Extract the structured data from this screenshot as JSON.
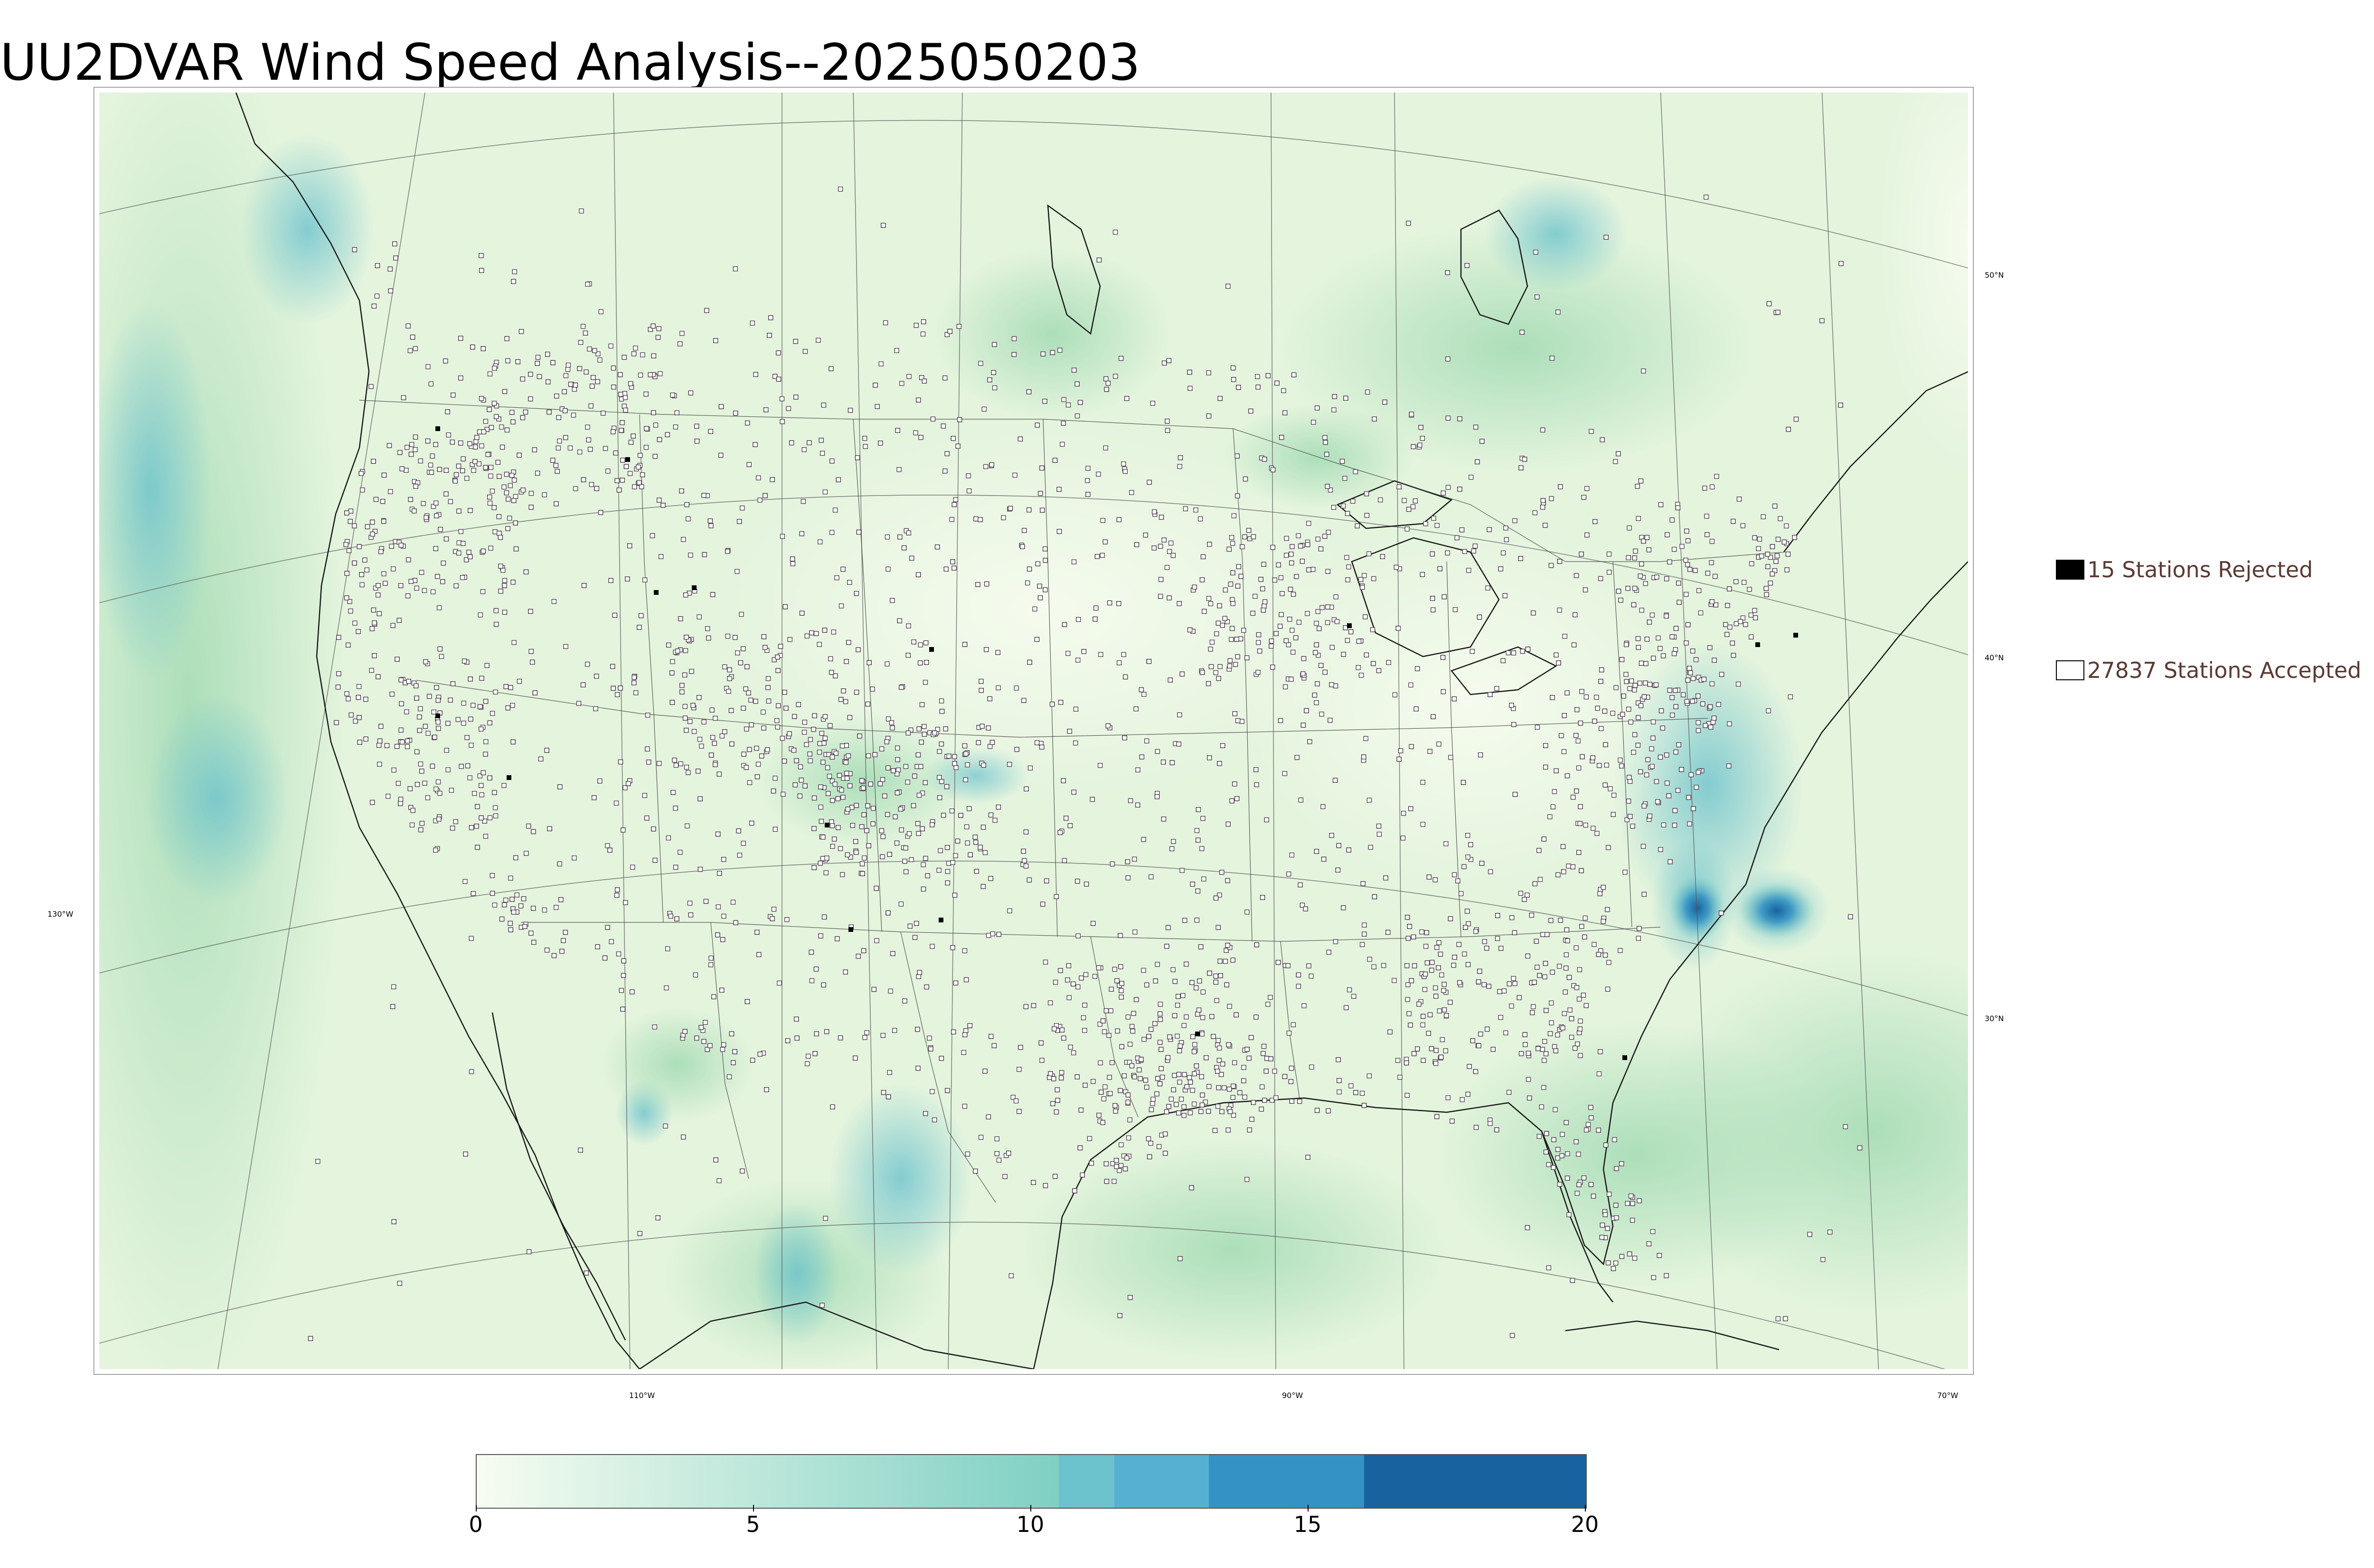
{
  "title": "UU2DVAR Wind Speed Analysis--2025050203",
  "map": {
    "background_color": "#e4f4dd",
    "ocean_color": "#b9e3c6",
    "latitude_labels": [
      "50°N",
      "40°N",
      "30°N"
    ],
    "longitude_labels": [
      "130°W",
      "110°W",
      "90°W",
      "70°W"
    ],
    "station_marker_color": "#ffffff",
    "station_edge_color": "#4a3b4a"
  },
  "legend": {
    "rejected_label": "15 Stations Rejected",
    "rejected_color": "#000000",
    "accepted_label": "27837 Stations Accepted",
    "accepted_color": "#ffffff",
    "text_color": "#5a3b34"
  },
  "colorbar": {
    "ticks": [
      "0",
      "5",
      "10",
      "15",
      "20"
    ],
    "min": 0,
    "max": 20,
    "segments": [
      {
        "from": 0,
        "to": 10.5,
        "color_start": "#f7fcf0",
        "color_end": "#7fd0c4"
      },
      {
        "from": 10.5,
        "to": 11.5,
        "color": "#6cc2cd"
      },
      {
        "from": 11.5,
        "to": 13.2,
        "color": "#56b0d1"
      },
      {
        "from": 13.2,
        "to": 16.0,
        "color": "#3593c3"
      },
      {
        "from": 16.0,
        "to": 20.0,
        "color": "#17629f"
      }
    ]
  },
  "chart_data": {
    "type": "heatmap",
    "title": "UU2DVAR Wind Speed Analysis--2025050203",
    "colorbar_range": [
      0,
      20
    ],
    "colorbar_ticks": [
      0,
      5,
      10,
      15,
      20
    ],
    "stations_rejected": 15,
    "stations_accepted": 27837,
    "graticule_latitudes": [
      "50°N",
      "40°N",
      "30°N"
    ],
    "graticule_longitudes": [
      "130°W",
      "110°W",
      "90°W",
      "70°W"
    ]
  }
}
